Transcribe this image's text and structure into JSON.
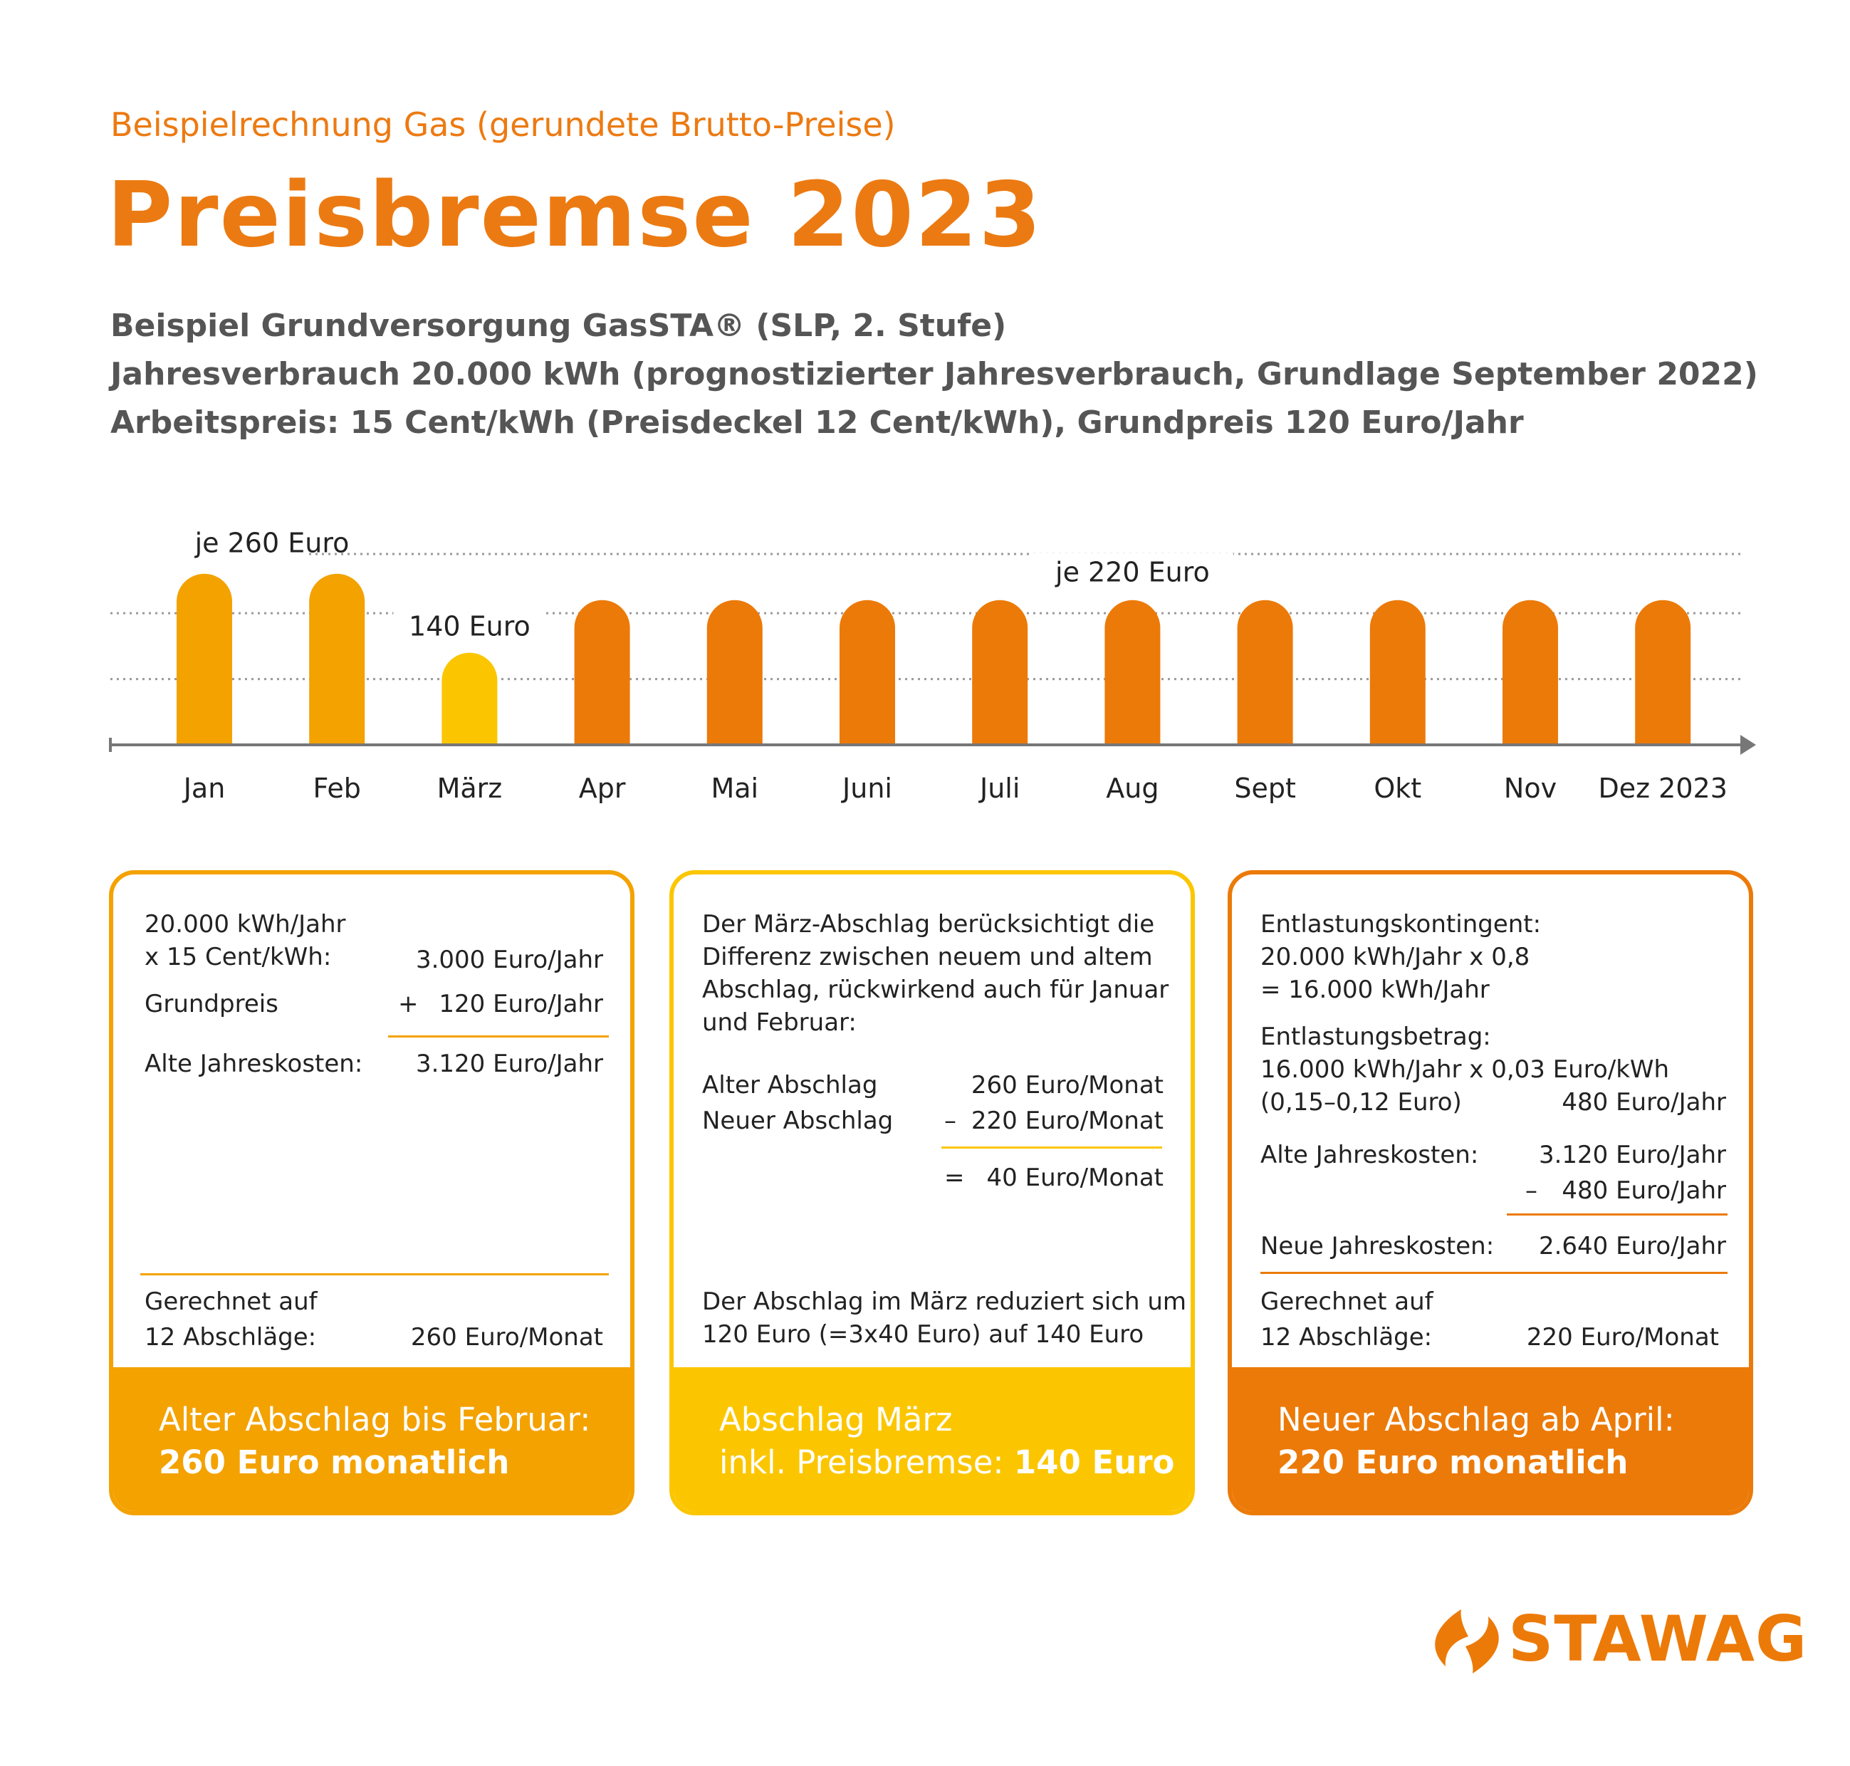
{
  "header": {
    "subtitle": "Beispielrechnung Gas (gerundete Brutto-Preise)",
    "title": "Preisbremse 2023",
    "info_lines": [
      "Beispiel Grundversorgung GasSTA® (SLP, 2. Stufe)",
      "Jahresverbrauch 20.000 kWh (prognostizierter Jahresverbrauch, Grundlage September 2022)",
      "Arbeitspreis: 15 Cent/kWh (Preisdeckel 12 Cent/kWh), Grundpreis 120 Euro/Jahr"
    ]
  },
  "colors": {
    "orange": "#ec7a08",
    "light_orange": "#f3a200",
    "yellow": "#fbc600",
    "axis": "#777777",
    "grid": "#9a9a9a"
  },
  "chart_data": {
    "type": "bar",
    "categories": [
      "Jan",
      "Feb",
      "März",
      "Apr",
      "Mai",
      "Juni",
      "Juli",
      "Aug",
      "Sept",
      "Okt",
      "Nov",
      "Dez 2023"
    ],
    "values": [
      260,
      260,
      140,
      220,
      220,
      220,
      220,
      220,
      220,
      220,
      220,
      220
    ],
    "bar_colors": [
      "#f3a200",
      "#f3a200",
      "#fbc600",
      "#ec7a08",
      "#ec7a08",
      "#ec7a08",
      "#ec7a08",
      "#ec7a08",
      "#ec7a08",
      "#ec7a08",
      "#ec7a08",
      "#ec7a08"
    ],
    "annotations": [
      {
        "text": "je 260 Euro",
        "category": "Jan"
      },
      {
        "text": "140 Euro",
        "category": "März"
      },
      {
        "text": "je 220 Euro",
        "category": "Aug"
      }
    ],
    "ylim": [
      0,
      290
    ],
    "grid_values": [
      100,
      200,
      290
    ],
    "grid": "dotted",
    "title": "",
    "xlabel": "",
    "ylabel": ""
  },
  "cards": {
    "left": {
      "line1": "20.000 kWh/Jahr",
      "line2": "x 15 Cent/kWh:",
      "val1": "3.000 Euro/Jahr",
      "grundpreis_label": "Grundpreis",
      "plus": "+",
      "grundpreis_val": "120 Euro/Jahr",
      "alte_label": "Alte Jahreskosten:",
      "alte_val": "3.120 Euro/Jahr",
      "gerechnet1": "Gerechnet auf",
      "gerechnet2": "12 Abschläge:",
      "gerechnet_val": "260 Euro/Monat",
      "foot1": "Alter Abschlag bis Februar:",
      "foot2": "260 Euro monatlich"
    },
    "middle": {
      "p1": "Der März-Abschlag berücksichtigt die",
      "p2": "Differenz zwischen neuem und altem",
      "p3": "Abschlag, rückwirkend auch für Januar",
      "p4": "und Februar:",
      "alter_label": "Alter Abschlag",
      "alter_val": "260 Euro/Monat",
      "neuer_label": "Neuer Abschlag",
      "minus": "–",
      "neuer_val": "220 Euro/Monat",
      "eq": "=",
      "diff_val": "40 Euro/Monat",
      "q1": "Der Abschlag im März reduziert sich um",
      "q2": "120 Euro (=3x40 Euro) auf 140 Euro",
      "foot1": "Abschlag März",
      "foot2a": "inkl. Preisbremse: ",
      "foot2b": "140 Euro"
    },
    "right": {
      "e1": "Entlastungskontingent:",
      "e2": "20.000 kWh/Jahr x 0,8",
      "e3": "= 16.000 kWh/Jahr",
      "b1": "Entlastungsbetrag:",
      "b2": "16.000 kWh/Jahr x 0,03 Euro/kWh",
      "b3": "(0,15–0,12 Euro)",
      "b_val": "480 Euro/Jahr",
      "alte_label": "Alte Jahreskosten:",
      "alte_val": "3.120 Euro/Jahr",
      "minus": "–",
      "minus_val": "480 Euro/Jahr",
      "neue_label": "Neue Jahreskosten:",
      "neue_val": "2.640 Euro/Jahr",
      "gerechnet1": "Gerechnet auf",
      "gerechnet2": "12 Abschläge:",
      "gerechnet_val": "220 Euro/Monat",
      "foot1": "Neuer Abschlag ab April:",
      "foot2": "220 Euro monatlich"
    }
  },
  "logo": {
    "text": "STAWAG",
    "icon": "stawag-flame-icon"
  }
}
